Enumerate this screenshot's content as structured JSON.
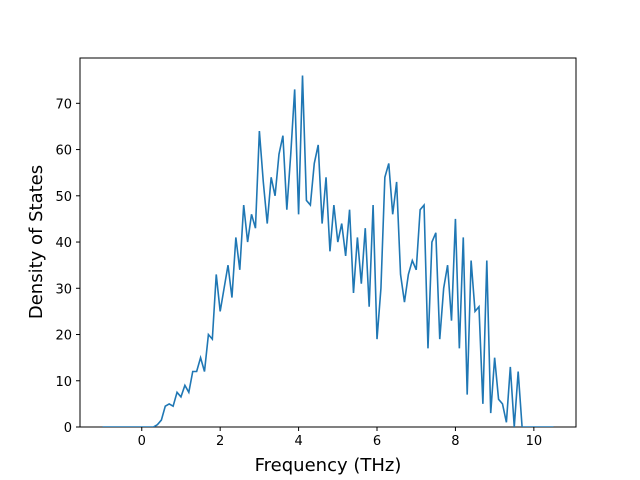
{
  "chart_data": {
    "type": "line",
    "xlabel": "Frequency (THz)",
    "ylabel": "Density of States",
    "x": [
      -1.0,
      -0.9,
      -0.8,
      -0.7,
      -0.6,
      -0.5,
      -0.4,
      -0.3,
      -0.2,
      -0.1,
      0.0,
      0.1,
      0.2,
      0.3,
      0.4,
      0.5,
      0.6,
      0.7,
      0.8,
      0.9,
      1.0,
      1.1,
      1.2,
      1.3,
      1.4,
      1.5,
      1.6,
      1.7,
      1.8,
      1.9,
      2.0,
      2.1,
      2.2,
      2.3,
      2.4,
      2.5,
      2.6,
      2.7,
      2.8,
      2.9,
      3.0,
      3.1,
      3.2,
      3.3,
      3.4,
      3.5,
      3.6,
      3.7,
      3.8,
      3.9,
      4.0,
      4.1,
      4.2,
      4.3,
      4.4,
      4.5,
      4.6,
      4.7,
      4.8,
      4.9,
      5.0,
      5.1,
      5.2,
      5.3,
      5.4,
      5.5,
      5.6,
      5.7,
      5.8,
      5.9,
      6.0,
      6.1,
      6.2,
      6.3,
      6.4,
      6.5,
      6.6,
      6.7,
      6.8,
      6.9,
      7.0,
      7.1,
      7.2,
      7.3,
      7.4,
      7.5,
      7.6,
      7.7,
      7.8,
      7.9,
      8.0,
      8.1,
      8.2,
      8.3,
      8.4,
      8.5,
      8.6,
      8.7,
      8.8,
      8.9,
      9.0,
      9.1,
      9.2,
      9.3,
      9.4,
      9.5,
      9.6,
      9.7,
      9.8,
      9.9,
      10.0,
      10.1,
      10.2,
      10.3,
      10.4,
      10.5
    ],
    "series": [
      {
        "color": "#1f77b4",
        "values": [
          0,
          0,
          0,
          0,
          0,
          0,
          0,
          0,
          0,
          0,
          0,
          0,
          0,
          0,
          0.5,
          1.5,
          4.5,
          5,
          4.5,
          7.5,
          6.5,
          9,
          7.5,
          12,
          12,
          15,
          12,
          20,
          19,
          33,
          25,
          30,
          35,
          28,
          41,
          34,
          48,
          40,
          46,
          43,
          64,
          53,
          44,
          54,
          50,
          59,
          63,
          47,
          59,
          73,
          46,
          76,
          49,
          48,
          57,
          61,
          44,
          54,
          38,
          48,
          40,
          44,
          37,
          47,
          29,
          41,
          31,
          43,
          26,
          48,
          19,
          30,
          54,
          57,
          46,
          53,
          33,
          27,
          33,
          36,
          34,
          47,
          48,
          17,
          40,
          42,
          19,
          30,
          35,
          23,
          45,
          17,
          41,
          7,
          36,
          25,
          26,
          5,
          36,
          3,
          15,
          6,
          5,
          1,
          13,
          0,
          12,
          0,
          0,
          0,
          0,
          0,
          0,
          0,
          0,
          0
        ]
      }
    ],
    "xlim": [
      -1.575,
      11.075
    ],
    "ylim": [
      0,
      79.8
    ],
    "xticks": [
      0,
      2,
      4,
      6,
      8,
      10
    ],
    "yticks": [
      0,
      10,
      20,
      30,
      40,
      50,
      60,
      70
    ]
  }
}
